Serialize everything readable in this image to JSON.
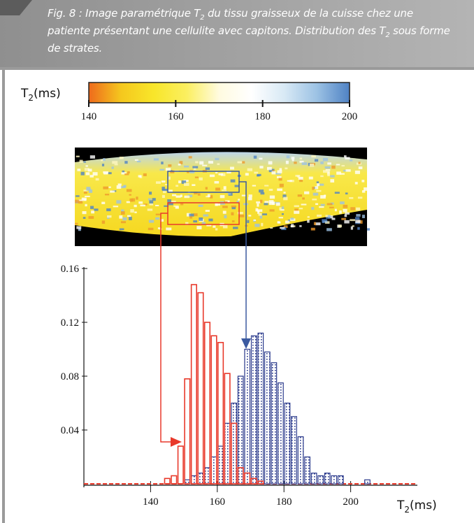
{
  "caption": [
    "Fig. 8 : Image paramétrique T",
    "2",
    " du tissu graisseux de la cuisse chez une patiente présentant une cellulite avec capitons. Distribution des T",
    "2",
    " sous forme de strates."
  ],
  "chart_data": [
    {
      "type": "colorbar",
      "label": [
        "T",
        "2",
        "(ms)"
      ],
      "xlim": [
        140,
        200
      ],
      "xticks": [
        140,
        160,
        180,
        200
      ],
      "colors": [
        "#ee6a1c",
        "#f5c81e",
        "#f8e62a",
        "#fbef60",
        "#fffbe0",
        "#ffffff",
        "#d8e9f5",
        "#9cc2e4",
        "#4f82c4"
      ]
    },
    {
      "type": "histogram",
      "x_label": [
        "T",
        "2",
        "(ms)"
      ],
      "xlim": [
        120,
        220
      ],
      "ylim": [
        0,
        0.16
      ],
      "xticks": [
        140,
        160,
        180,
        200
      ],
      "yticks": [
        0.04,
        0.08,
        0.12,
        0.16
      ],
      "series": [
        {
          "color": "#2b3a8c",
          "bins": [
            150,
            152,
            154,
            156,
            158,
            160,
            162,
            164,
            166,
            168,
            170,
            172,
            174,
            176,
            178,
            180,
            182,
            184,
            186,
            188,
            190,
            192,
            194,
            196,
            198,
            200,
            202,
            204,
            206
          ],
          "values": [
            0.003,
            0.006,
            0.008,
            0.012,
            0.02,
            0.028,
            0.045,
            0.06,
            0.08,
            0.1,
            0.11,
            0.112,
            0.098,
            0.09,
            0.075,
            0.06,
            0.05,
            0.035,
            0.02,
            0.008,
            0.006,
            0.008,
            0.006,
            0.006,
            0,
            0,
            0,
            0.003
          ]
        },
        {
          "color": "#e8392b",
          "bins": [
            144,
            146,
            148,
            150,
            152,
            154,
            156,
            158,
            160,
            162,
            164,
            166,
            168,
            170,
            172,
            174
          ],
          "values": [
            0.004,
            0.006,
            0.028,
            0.078,
            0.148,
            0.142,
            0.12,
            0.11,
            0.105,
            0.082,
            0.045,
            0.012,
            0.008,
            0.004,
            0.002
          ]
        }
      ]
    }
  ]
}
